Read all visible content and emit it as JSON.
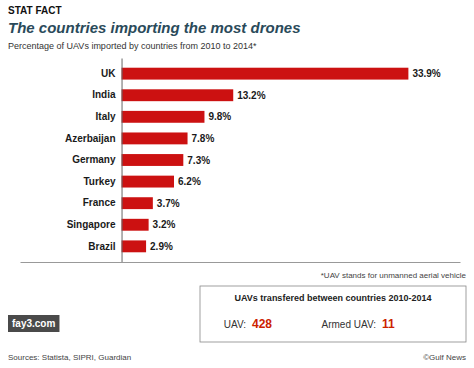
{
  "chart_data": {
    "type": "bar",
    "orientation": "horizontal",
    "title": "The countries importing the most drones",
    "subtitle": "Percentage of UAVs imported by countries from 2010 to 2014*",
    "categories": [
      "UK",
      "India",
      "Italy",
      "Azerbaijan",
      "Germany",
      "Turkey",
      "France",
      "Singapore",
      "Brazil"
    ],
    "values": [
      33.9,
      13.2,
      9.8,
      7.8,
      7.3,
      6.2,
      3.7,
      3.2,
      2.9
    ],
    "value_labels": [
      "33.9%",
      "13.2%",
      "9.8%",
      "7.8%",
      "7.3%",
      "6.2%",
      "3.7%",
      "3.2%",
      "2.9%"
    ],
    "data_labels": true,
    "color": "#cc1111",
    "xlim": [
      -12,
      40
    ],
    "tick_labels": false,
    "grid": false,
    "annotations": [
      "STAT FACT",
      "*UAV stands for unmanned aerial vehicle",
      "UAVs transfered between countries 2010-2014",
      "UAV:",
      "428",
      "Armed UAV:",
      "11",
      "Sources: Statista, SIPRI, Guardian",
      "©Gulf News",
      "fay3.com"
    ]
  }
}
